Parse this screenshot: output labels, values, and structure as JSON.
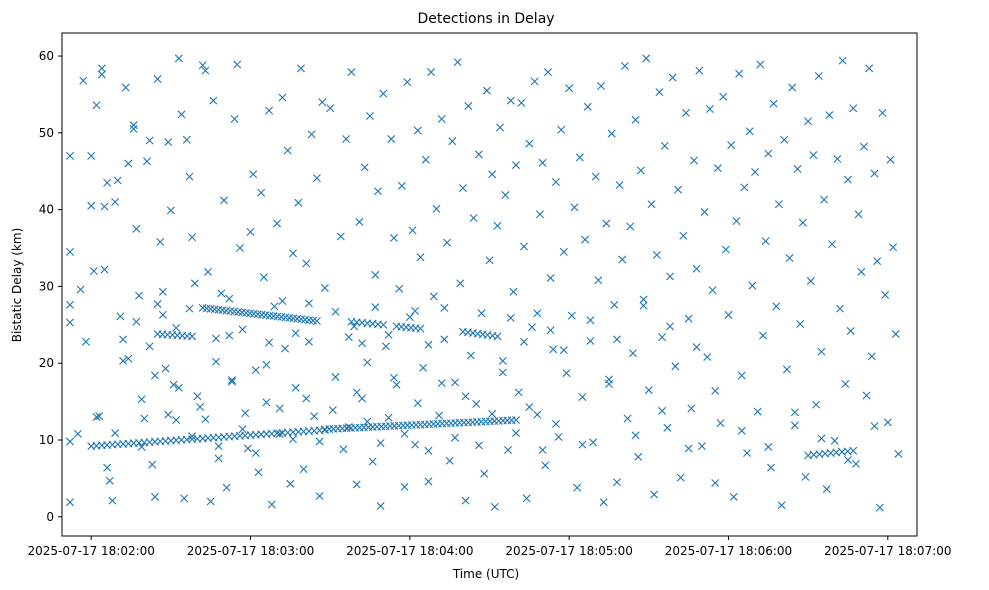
{
  "chart_data": {
    "type": "scatter",
    "title": "Detections in Delay",
    "xlabel": "Time (UTC)",
    "ylabel": "Bistatic Delay (km)",
    "marker": "x",
    "marker_color": "#1f77b4",
    "x_unit": "seconds after 2025-07-17 18:02:00 UTC",
    "xlim": [
      -11,
      311
    ],
    "ylim": [
      -2.5,
      63
    ],
    "x_ticks": [
      {
        "value": 0,
        "label": "2025-07-17 18:02:00"
      },
      {
        "value": 60,
        "label": "2025-07-17 18:03:00"
      },
      {
        "value": 120,
        "label": "2025-07-17 18:04:00"
      },
      {
        "value": 180,
        "label": "2025-07-17 18:05:00"
      },
      {
        "value": 240,
        "label": "2025-07-17 18:06:00"
      },
      {
        "value": 300,
        "label": "2025-07-17 18:07:00"
      }
    ],
    "y_ticks": [
      {
        "value": 0,
        "label": "0"
      },
      {
        "value": 10,
        "label": "10"
      },
      {
        "value": 20,
        "label": "20"
      },
      {
        "value": 30,
        "label": "30"
      },
      {
        "value": 40,
        "label": "40"
      },
      {
        "value": 50,
        "label": "50"
      },
      {
        "value": 60,
        "label": "60"
      }
    ],
    "track_segments": [
      {
        "name": "track-low-1",
        "t_start": 0,
        "t_end": 88,
        "delay_start": 9.2,
        "delay_end": 11.3,
        "count": 45
      },
      {
        "name": "track-low-2",
        "t_start": 88,
        "t_end": 160,
        "delay_start": 11.4,
        "delay_end": 12.6,
        "count": 45
      },
      {
        "name": "track-low-3",
        "t_start": 270,
        "t_end": 287,
        "delay_start": 8.0,
        "delay_end": 8.6,
        "count": 9
      },
      {
        "name": "track-mid-1",
        "t_start": 42,
        "t_end": 85,
        "delay_start": 27.2,
        "delay_end": 25.5,
        "count": 30
      },
      {
        "name": "track-mid-2",
        "t_start": 25,
        "t_end": 38,
        "delay_start": 23.8,
        "delay_end": 23.5,
        "count": 8
      },
      {
        "name": "track-mid-3",
        "t_start": 98,
        "t_end": 110,
        "delay_start": 25.4,
        "delay_end": 25.0,
        "count": 7
      },
      {
        "name": "track-mid-4",
        "t_start": 115,
        "t_end": 124,
        "delay_start": 24.8,
        "delay_end": 24.5,
        "count": 6
      },
      {
        "name": "track-mid-5",
        "t_start": 140,
        "t_end": 153,
        "delay_start": 24.1,
        "delay_end": 23.5,
        "count": 8
      }
    ],
    "clutter_points": [
      [
        -8,
        47
      ],
      [
        -8,
        34.5
      ],
      [
        -8,
        27.6
      ],
      [
        -8,
        25.3
      ],
      [
        -8,
        9.8
      ],
      [
        -8,
        1.9
      ],
      [
        -5,
        10.8
      ],
      [
        -4,
        29.6
      ],
      [
        -3,
        56.8
      ],
      [
        -2,
        22.8
      ],
      [
        0,
        47
      ],
      [
        0,
        40.5
      ],
      [
        1,
        32
      ],
      [
        2,
        53.6
      ],
      [
        2,
        13
      ],
      [
        4,
        58.4
      ],
      [
        4,
        57.6
      ],
      [
        5,
        40.4
      ],
      [
        5,
        32.2
      ],
      [
        6,
        43.5
      ],
      [
        6,
        6.4
      ],
      [
        7,
        4.7
      ],
      [
        8,
        2.1
      ],
      [
        9,
        41
      ],
      [
        10,
        43.8
      ],
      [
        11,
        26.1
      ],
      [
        12,
        20.3
      ],
      [
        13,
        55.9
      ],
      [
        14,
        46
      ],
      [
        16,
        51
      ],
      [
        16,
        50.5
      ],
      [
        17,
        37.5
      ],
      [
        18,
        28.8
      ],
      [
        19,
        15.3
      ],
      [
        20,
        12.8
      ],
      [
        21,
        46.3
      ],
      [
        22,
        49
      ],
      [
        23,
        6.8
      ],
      [
        24,
        2.6
      ],
      [
        25,
        57
      ],
      [
        25,
        27.7
      ],
      [
        26,
        35.8
      ],
      [
        27,
        29.3
      ],
      [
        28,
        19.3
      ],
      [
        29,
        48.8
      ],
      [
        30,
        39.9
      ],
      [
        31,
        17.2
      ],
      [
        32,
        12.6
      ],
      [
        33,
        59.7
      ],
      [
        34,
        52.4
      ],
      [
        35,
        2.4
      ],
      [
        36,
        49.1
      ],
      [
        37,
        44.3
      ],
      [
        38,
        36.4
      ],
      [
        39,
        30.4
      ],
      [
        40,
        15.7
      ],
      [
        41,
        14.3
      ],
      [
        42,
        58.8
      ],
      [
        43,
        58.1
      ],
      [
        44,
        31.9
      ],
      [
        45,
        2
      ],
      [
        46,
        54.2
      ],
      [
        47,
        20.2
      ],
      [
        48,
        7.6
      ],
      [
        49,
        29.1
      ],
      [
        50,
        41.2
      ],
      [
        51,
        3.8
      ],
      [
        52,
        23.6
      ],
      [
        53,
        17.8
      ],
      [
        54,
        51.8
      ],
      [
        55,
        58.9
      ],
      [
        56,
        35
      ],
      [
        58,
        13.5
      ],
      [
        59,
        8.9
      ],
      [
        60,
        37.1
      ],
      [
        61,
        44.6
      ],
      [
        62,
        19.1
      ],
      [
        63,
        5.8
      ],
      [
        64,
        42.2
      ],
      [
        65,
        31.2
      ],
      [
        66,
        14.9
      ],
      [
        67,
        52.9
      ],
      [
        68,
        1.6
      ],
      [
        69,
        27.4
      ],
      [
        70,
        38.2
      ],
      [
        71,
        10.8
      ],
      [
        72,
        54.6
      ],
      [
        73,
        21.9
      ],
      [
        74,
        47.7
      ],
      [
        75,
        4.3
      ],
      [
        76,
        34.3
      ],
      [
        77,
        16.8
      ],
      [
        78,
        40.9
      ],
      [
        79,
        58.4
      ],
      [
        80,
        6.2
      ],
      [
        81,
        33
      ],
      [
        82,
        22.8
      ],
      [
        83,
        49.8
      ],
      [
        84,
        13.1
      ],
      [
        85,
        44.1
      ],
      [
        86,
        2.7
      ],
      [
        87,
        54
      ],
      [
        88,
        29.8
      ],
      [
        90,
        53.2
      ],
      [
        92,
        18.2
      ],
      [
        94,
        36.5
      ],
      [
        96,
        49.2
      ],
      [
        97,
        11.7
      ],
      [
        98,
        57.9
      ],
      [
        99,
        24.8
      ],
      [
        100,
        4.2
      ],
      [
        101,
        38.4
      ],
      [
        102,
        15.4
      ],
      [
        103,
        45.5
      ],
      [
        104,
        20.1
      ],
      [
        105,
        52.2
      ],
      [
        106,
        7.2
      ],
      [
        107,
        31.5
      ],
      [
        108,
        42.4
      ],
      [
        109,
        1.4
      ],
      [
        110,
        55.1
      ],
      [
        111,
        22.2
      ],
      [
        112,
        12.9
      ],
      [
        113,
        49.2
      ],
      [
        114,
        36.3
      ],
      [
        115,
        17.2
      ],
      [
        116,
        29.7
      ],
      [
        117,
        43.1
      ],
      [
        118,
        3.9
      ],
      [
        119,
        56.6
      ],
      [
        120,
        26
      ],
      [
        121,
        37.3
      ],
      [
        122,
        9.4
      ],
      [
        123,
        50.3
      ],
      [
        124,
        33.8
      ],
      [
        125,
        19.4
      ],
      [
        126,
        46.5
      ],
      [
        127,
        4.6
      ],
      [
        128,
        57.9
      ],
      [
        129,
        28.7
      ],
      [
        130,
        40.1
      ],
      [
        131,
        13.2
      ],
      [
        132,
        51.8
      ],
      [
        133,
        23.1
      ],
      [
        134,
        35.7
      ],
      [
        135,
        7.3
      ],
      [
        136,
        48.9
      ],
      [
        137,
        17.5
      ],
      [
        138,
        59.2
      ],
      [
        139,
        30.4
      ],
      [
        140,
        42.8
      ],
      [
        141,
        2.1
      ],
      [
        142,
        53.5
      ],
      [
        143,
        21
      ],
      [
        144,
        38.9
      ],
      [
        145,
        14.7
      ],
      [
        146,
        47.2
      ],
      [
        147,
        26.5
      ],
      [
        148,
        5.6
      ],
      [
        149,
        55.5
      ],
      [
        150,
        33.4
      ],
      [
        151,
        44.6
      ],
      [
        152,
        1.3
      ],
      [
        153,
        37.9
      ],
      [
        154,
        50.7
      ],
      [
        155,
        20.3
      ],
      [
        156,
        41.9
      ],
      [
        157,
        8.7
      ],
      [
        158,
        54.2
      ],
      [
        159,
        29.3
      ],
      [
        160,
        45.8
      ],
      [
        161,
        16.2
      ],
      [
        162,
        53.9
      ],
      [
        163,
        35.2
      ],
      [
        164,
        2.4
      ],
      [
        165,
        48.6
      ],
      [
        166,
        24.7
      ],
      [
        167,
        56.7
      ],
      [
        168,
        13.3
      ],
      [
        169,
        39.4
      ],
      [
        170,
        46.1
      ],
      [
        171,
        6.7
      ],
      [
        172,
        57.9
      ],
      [
        173,
        31.1
      ],
      [
        174,
        21.8
      ],
      [
        175,
        43.6
      ],
      [
        176,
        10.4
      ],
      [
        177,
        50.4
      ],
      [
        178,
        34.5
      ],
      [
        179,
        18.7
      ],
      [
        180,
        55.8
      ],
      [
        181,
        26.2
      ],
      [
        182,
        40.3
      ],
      [
        183,
        3.8
      ],
      [
        184,
        46.8
      ],
      [
        185,
        15.6
      ],
      [
        186,
        36.1
      ],
      [
        187,
        53.4
      ],
      [
        188,
        22.9
      ],
      [
        189,
        9.7
      ],
      [
        190,
        44.3
      ],
      [
        191,
        30.8
      ],
      [
        192,
        56.1
      ],
      [
        193,
        1.9
      ],
      [
        194,
        38.2
      ],
      [
        195,
        17.9
      ],
      [
        196,
        49.9
      ],
      [
        197,
        27.6
      ],
      [
        198,
        4.5
      ],
      [
        199,
        43.2
      ],
      [
        200,
        33.5
      ],
      [
        201,
        58.7
      ],
      [
        202,
        12.8
      ],
      [
        203,
        37.8
      ],
      [
        204,
        21.3
      ],
      [
        205,
        51.7
      ],
      [
        206,
        7.8
      ],
      [
        207,
        45.1
      ],
      [
        208,
        28.3
      ],
      [
        209,
        59.7
      ],
      [
        210,
        16.5
      ],
      [
        211,
        40.7
      ],
      [
        212,
        2.9
      ],
      [
        213,
        34.1
      ],
      [
        214,
        55.3
      ],
      [
        215,
        23.4
      ],
      [
        216,
        48.3
      ],
      [
        217,
        11.6
      ],
      [
        218,
        31.3
      ],
      [
        219,
        57.2
      ],
      [
        220,
        19.6
      ],
      [
        221,
        42.6
      ],
      [
        222,
        5.1
      ],
      [
        223,
        36.6
      ],
      [
        224,
        52.6
      ],
      [
        225,
        25.8
      ],
      [
        226,
        14.1
      ],
      [
        227,
        46.4
      ],
      [
        228,
        32.3
      ],
      [
        229,
        58.1
      ],
      [
        230,
        9.2
      ],
      [
        231,
        39.7
      ],
      [
        232,
        20.8
      ],
      [
        233,
        53.1
      ],
      [
        234,
        29.5
      ],
      [
        235,
        4.4
      ],
      [
        236,
        45.4
      ],
      [
        237,
        12.2
      ],
      [
        238,
        54.7
      ],
      [
        239,
        34.8
      ],
      [
        240,
        26.3
      ],
      [
        241,
        48.4
      ],
      [
        242,
        2.6
      ],
      [
        243,
        38.5
      ],
      [
        244,
        57.7
      ],
      [
        245,
        18.4
      ],
      [
        246,
        42.9
      ],
      [
        247,
        8.3
      ],
      [
        248,
        50.2
      ],
      [
        249,
        30.1
      ],
      [
        250,
        44.9
      ],
      [
        251,
        13.7
      ],
      [
        252,
        58.9
      ],
      [
        253,
        23.6
      ],
      [
        254,
        35.9
      ],
      [
        255,
        47.3
      ],
      [
        256,
        6.4
      ],
      [
        257,
        53.8
      ],
      [
        258,
        27.4
      ],
      [
        259,
        40.7
      ],
      [
        260,
        1.5
      ],
      [
        261,
        49.1
      ],
      [
        262,
        19.2
      ],
      [
        263,
        33.7
      ],
      [
        264,
        55.9
      ],
      [
        265,
        11.9
      ],
      [
        266,
        45.3
      ],
      [
        267,
        25.1
      ],
      [
        268,
        38.3
      ],
      [
        269,
        5.2
      ],
      [
        270,
        51.5
      ],
      [
        271,
        30.7
      ],
      [
        272,
        47.1
      ],
      [
        273,
        14.6
      ],
      [
        274,
        57.4
      ],
      [
        275,
        21.5
      ],
      [
        276,
        41.3
      ],
      [
        277,
        3.6
      ],
      [
        278,
        52.3
      ],
      [
        279,
        35.5
      ],
      [
        280,
        9.9
      ],
      [
        281,
        46.6
      ],
      [
        282,
        27.1
      ],
      [
        283,
        59.4
      ],
      [
        284,
        17.3
      ],
      [
        285,
        43.9
      ],
      [
        286,
        24.2
      ],
      [
        287,
        53.2
      ],
      [
        288,
        6.9
      ],
      [
        289,
        39.4
      ],
      [
        290,
        31.9
      ],
      [
        291,
        48.2
      ],
      [
        292,
        15.8
      ],
      [
        293,
        58.4
      ],
      [
        294,
        20.9
      ],
      [
        295,
        44.7
      ],
      [
        296,
        33.3
      ],
      [
        297,
        1.2
      ],
      [
        298,
        52.6
      ],
      [
        299,
        28.9
      ],
      [
        300,
        12.3
      ],
      [
        301,
        46.5
      ],
      [
        302,
        35.1
      ],
      [
        303,
        23.8
      ],
      [
        304,
        8.2
      ],
      [
        3,
        13.1
      ],
      [
        9,
        10.9
      ],
      [
        14,
        20.6
      ],
      [
        19,
        9.1
      ],
      [
        24,
        18.4
      ],
      [
        29,
        13.3
      ],
      [
        33,
        16.8
      ],
      [
        38,
        10.5
      ],
      [
        43,
        12.7
      ],
      [
        48,
        9.2
      ],
      [
        53,
        17.6
      ],
      [
        57,
        11.4
      ],
      [
        62,
        8.3
      ],
      [
        66,
        19.8
      ],
      [
        71,
        14.1
      ],
      [
        76,
        10.1
      ],
      [
        81,
        15.4
      ],
      [
        86,
        9.8
      ],
      [
        91,
        13.9
      ],
      [
        95,
        8.8
      ],
      [
        100,
        16.2
      ],
      [
        104,
        12.4
      ],
      [
        109,
        9.6
      ],
      [
        114,
        18.1
      ],
      [
        118,
        10.8
      ],
      [
        123,
        14.8
      ],
      [
        127,
        8.6
      ],
      [
        132,
        17.4
      ],
      [
        137,
        10.3
      ],
      [
        141,
        15.7
      ],
      [
        146,
        9.3
      ],
      [
        151,
        13.4
      ],
      [
        155,
        18.8
      ],
      [
        160,
        10.9
      ],
      [
        165,
        14.3
      ],
      [
        170,
        8.7
      ],
      [
        175,
        12.1
      ],
      [
        185,
        9.4
      ],
      [
        195,
        17.3
      ],
      [
        205,
        10.6
      ],
      [
        215,
        13.8
      ],
      [
        225,
        8.9
      ],
      [
        235,
        16.4
      ],
      [
        245,
        11.2
      ],
      [
        255,
        9.1
      ],
      [
        265,
        13.6
      ],
      [
        275,
        10.2
      ],
      [
        285,
        7.4
      ],
      [
        295,
        11.8
      ],
      [
        12,
        23.1
      ],
      [
        17,
        25.4
      ],
      [
        22,
        22.2
      ],
      [
        27,
        26.3
      ],
      [
        32,
        24.6
      ],
      [
        37,
        27.1
      ],
      [
        47,
        23.2
      ],
      [
        52,
        28.4
      ],
      [
        57,
        24.4
      ],
      [
        67,
        22.7
      ],
      [
        72,
        28.1
      ],
      [
        77,
        23.9
      ],
      [
        82,
        27.8
      ],
      [
        92,
        26.7
      ],
      [
        97,
        23.4
      ],
      [
        102,
        22.6
      ],
      [
        107,
        27.3
      ],
      [
        112,
        23.7
      ],
      [
        122,
        26.8
      ],
      [
        127,
        22.4
      ],
      [
        133,
        27.2
      ],
      [
        158,
        25.9
      ],
      [
        163,
        22.8
      ],
      [
        168,
        26.5
      ],
      [
        173,
        24.3
      ],
      [
        178,
        21.7
      ],
      [
        188,
        25.6
      ],
      [
        198,
        23.1
      ],
      [
        208,
        27.5
      ],
      [
        218,
        24.8
      ],
      [
        228,
        22.1
      ]
    ]
  }
}
